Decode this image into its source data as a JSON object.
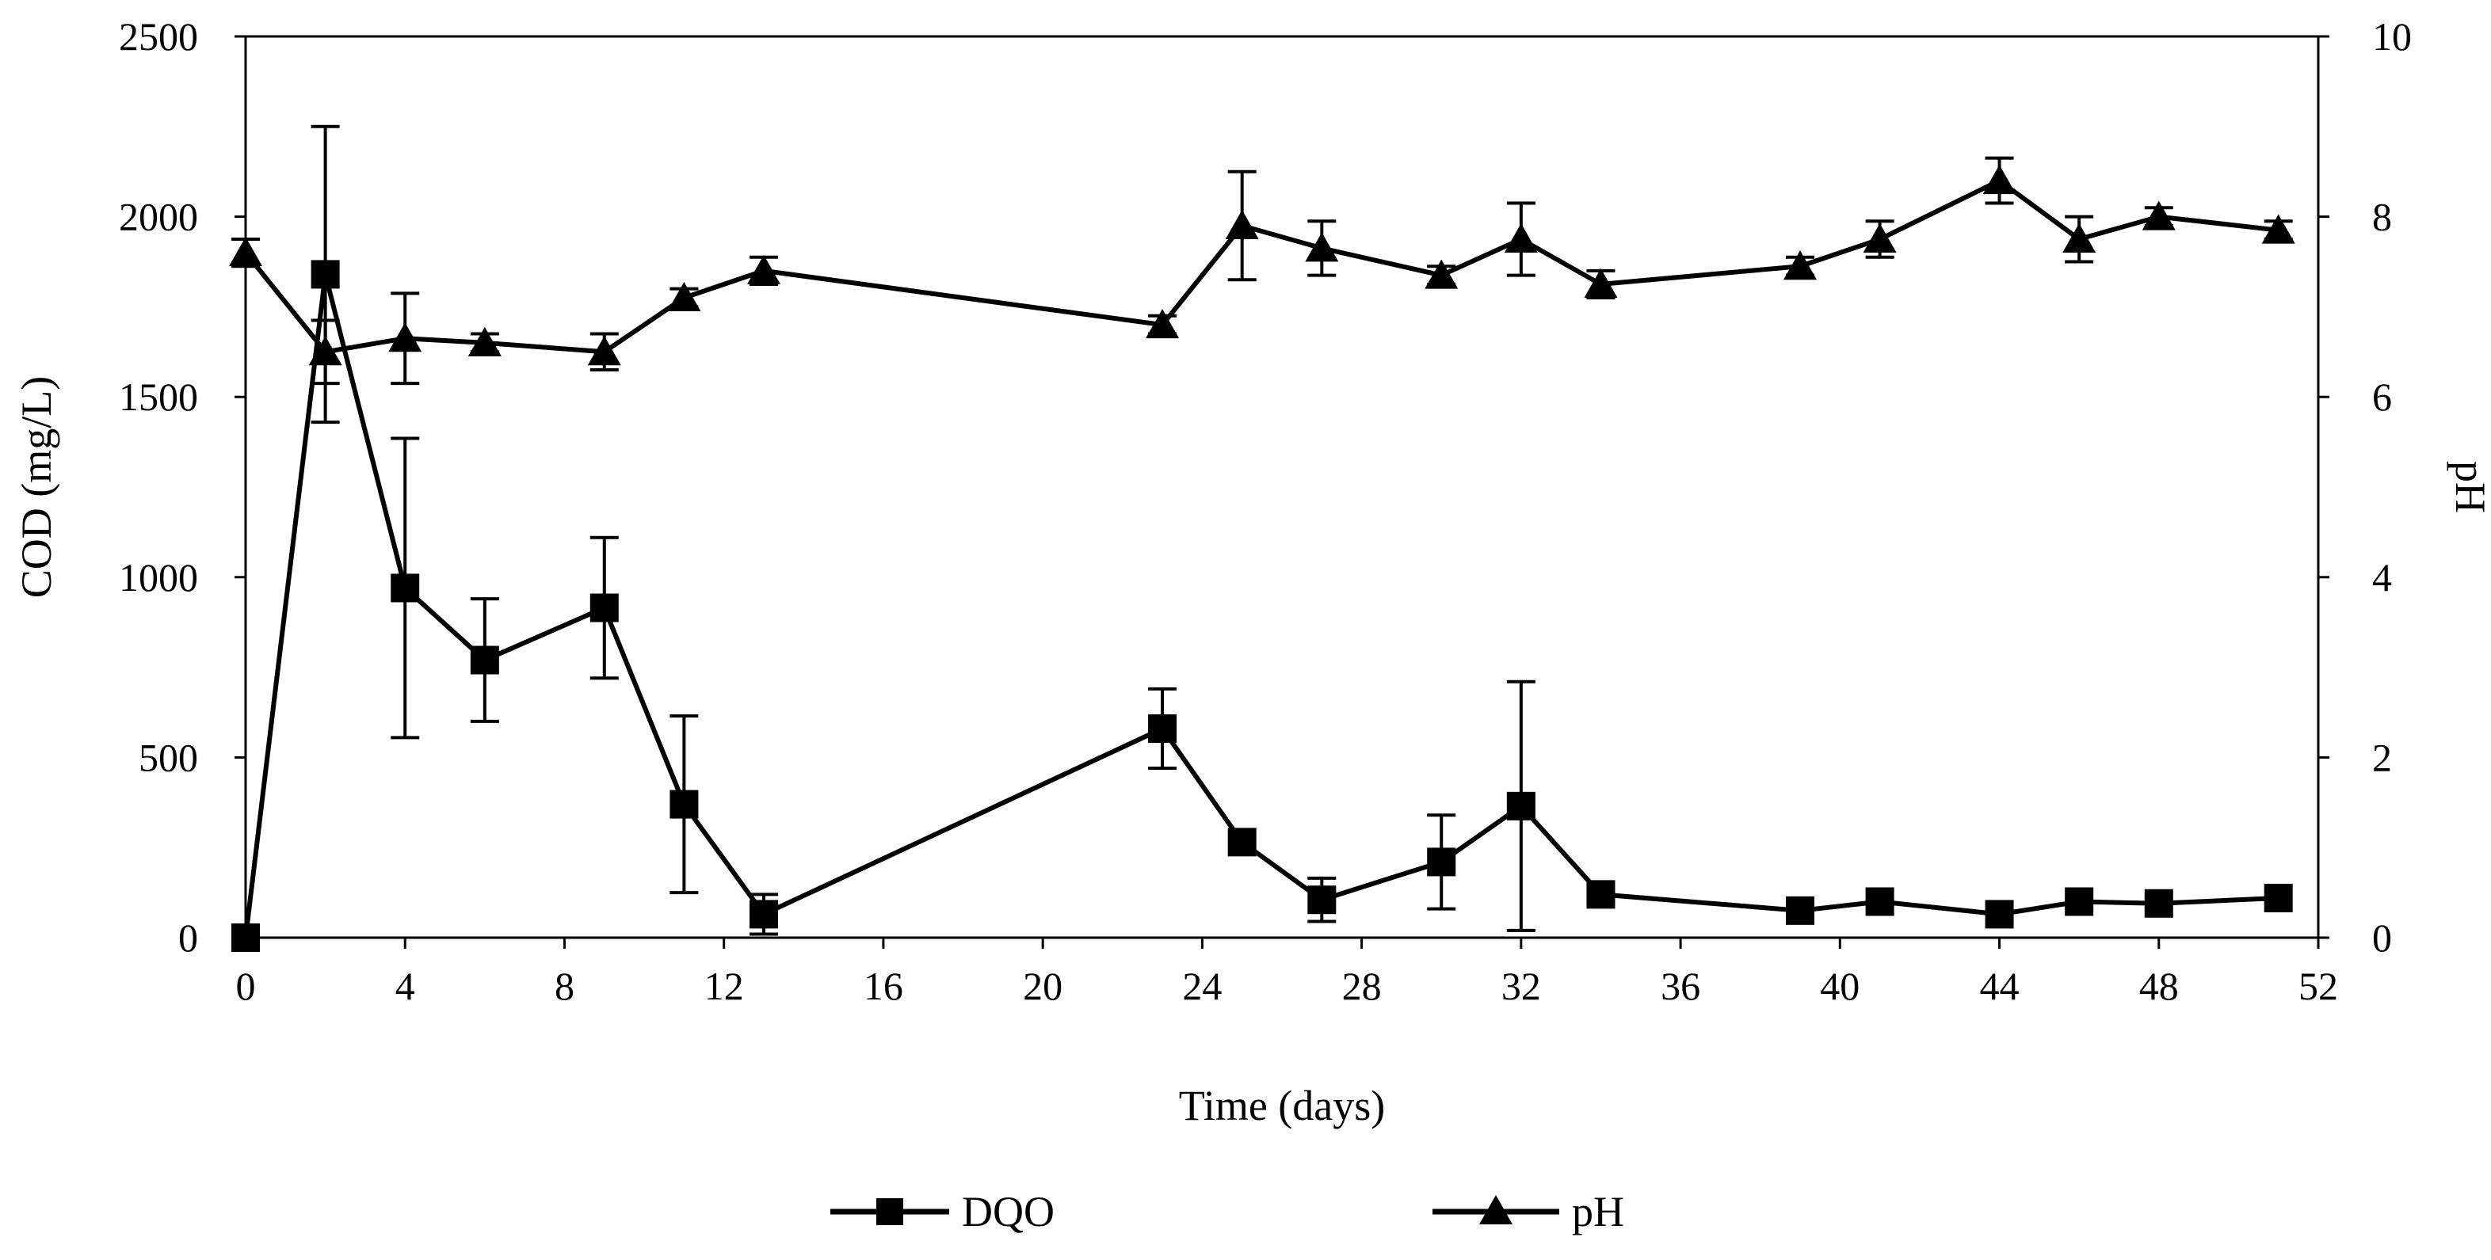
{
  "chart_data": {
    "type": "line",
    "title": "",
    "xlabel": "Time (days)",
    "ylabel": "COD (mg/L)",
    "y2label": "pH",
    "xlim": [
      0,
      52
    ],
    "ylim": [
      0,
      2500
    ],
    "y2lim": [
      0,
      10
    ],
    "xticks": [
      "0",
      "4",
      "8",
      "12",
      "16",
      "20",
      "24",
      "28",
      "32",
      "36",
      "40",
      "44",
      "48",
      "52"
    ],
    "yticks": [
      "0",
      "500",
      "1000",
      "1500",
      "2000",
      "2500"
    ],
    "y2ticks": [
      "0",
      "2",
      "4",
      "6",
      "8",
      "10"
    ],
    "grid": false,
    "legend_position": "bottom",
    "series": [
      {
        "name": "DQO",
        "axis": "left",
        "marker": "square",
        "color": "#000000",
        "x": [
          0,
          2,
          4,
          6,
          9,
          11,
          13,
          23,
          25,
          27,
          30,
          32,
          34,
          39,
          41,
          44,
          46,
          48,
          51
        ],
        "values": [
          0,
          1840,
          970,
          770,
          915,
          370,
          65,
          580,
          265,
          105,
          210,
          365,
          120,
          75,
          100,
          65,
          100,
          95,
          110
        ],
        "errors": [
          0,
          410,
          415,
          170,
          195,
          245,
          55,
          110,
          0,
          60,
          130,
          345,
          0,
          0,
          0,
          0,
          0,
          0,
          0
        ]
      },
      {
        "name": "pH",
        "axis": "right",
        "marker": "triangle",
        "color": "#000000",
        "x": [
          0,
          2,
          4,
          6,
          9,
          11,
          13,
          23,
          25,
          27,
          30,
          32,
          34,
          39,
          41,
          44,
          46,
          48,
          51
        ],
        "values": [
          7.6,
          6.5,
          6.65,
          6.6,
          6.5,
          7.1,
          7.4,
          6.8,
          7.9,
          7.65,
          7.35,
          7.75,
          7.25,
          7.45,
          7.75,
          8.4,
          7.75,
          8.0,
          7.85
        ],
        "errors": [
          0.15,
          0.35,
          0.5,
          0.1,
          0.2,
          0.1,
          0.15,
          0.1,
          0.6,
          0.3,
          0.1,
          0.4,
          0.15,
          0.1,
          0.2,
          0.25,
          0.25,
          0.1,
          0.1
        ]
      }
    ]
  }
}
